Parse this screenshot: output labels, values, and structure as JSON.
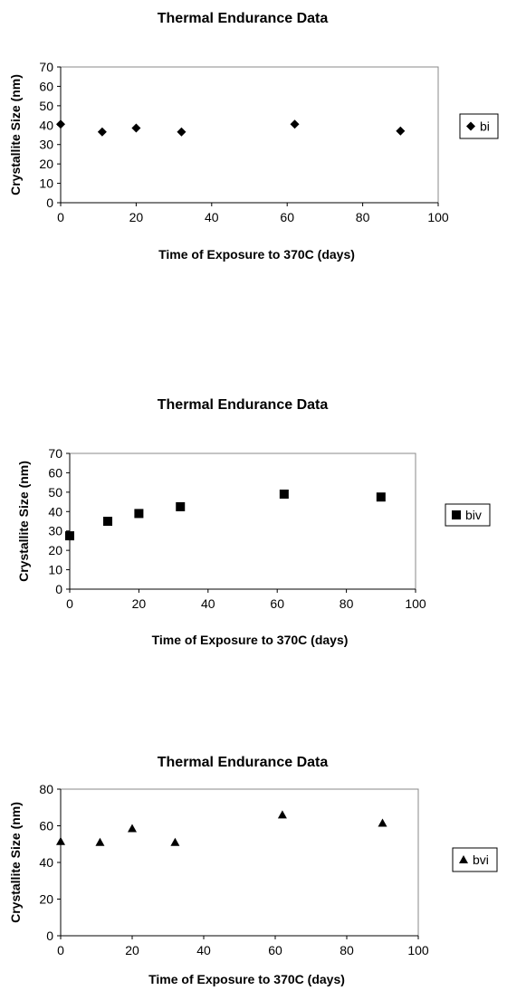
{
  "chart_data": [
    {
      "type": "scatter",
      "title": "Thermal Endurance Data",
      "xlabel": "Time of Exposure to 370C (days)",
      "ylabel": "Crystallite Size (nm)",
      "xlim": [
        0,
        100
      ],
      "ylim": [
        0,
        70
      ],
      "xticks": [
        "0",
        "20",
        "40",
        "60",
        "80",
        "100"
      ],
      "yticks": [
        "0",
        "10",
        "20",
        "30",
        "40",
        "50",
        "60",
        "70"
      ],
      "grid": false,
      "legend_position": "right",
      "series": [
        {
          "name": "bi",
          "marker": "diamond",
          "x": [
            0,
            11,
            20,
            32,
            62,
            90
          ],
          "y": [
            40.5,
            36.5,
            38.5,
            36.5,
            40.5,
            37
          ]
        }
      ]
    },
    {
      "type": "scatter",
      "title": "Thermal Endurance Data",
      "xlabel": "Time of Exposure to 370C (days)",
      "ylabel": "Crystallite Size (nm)",
      "xlim": [
        0,
        100
      ],
      "ylim": [
        0,
        70
      ],
      "xticks": [
        "0",
        "20",
        "40",
        "60",
        "80",
        "100"
      ],
      "yticks": [
        "0",
        "10",
        "20",
        "30",
        "40",
        "50",
        "60",
        "70"
      ],
      "grid": false,
      "legend_position": "right",
      "series": [
        {
          "name": "biv",
          "marker": "square",
          "x": [
            0,
            11,
            20,
            32,
            62,
            90
          ],
          "y": [
            27.5,
            35,
            39,
            42.5,
            49,
            47.5
          ]
        }
      ]
    },
    {
      "type": "scatter",
      "title": "Thermal Endurance Data",
      "xlabel": "Time of Exposure to 370C (days)",
      "ylabel": "Crystallite Size (nm)",
      "xlim": [
        0,
        100
      ],
      "ylim": [
        0,
        80
      ],
      "xticks": [
        "0",
        "20",
        "40",
        "60",
        "80",
        "100"
      ],
      "yticks": [
        "0",
        "20",
        "40",
        "60",
        "80"
      ],
      "grid": false,
      "legend_position": "right",
      "series": [
        {
          "name": "bvi",
          "marker": "triangle",
          "x": [
            0,
            11,
            20,
            32,
            62,
            90
          ],
          "y": [
            51.5,
            51,
            58.5,
            51,
            66,
            61.5
          ]
        }
      ]
    }
  ]
}
